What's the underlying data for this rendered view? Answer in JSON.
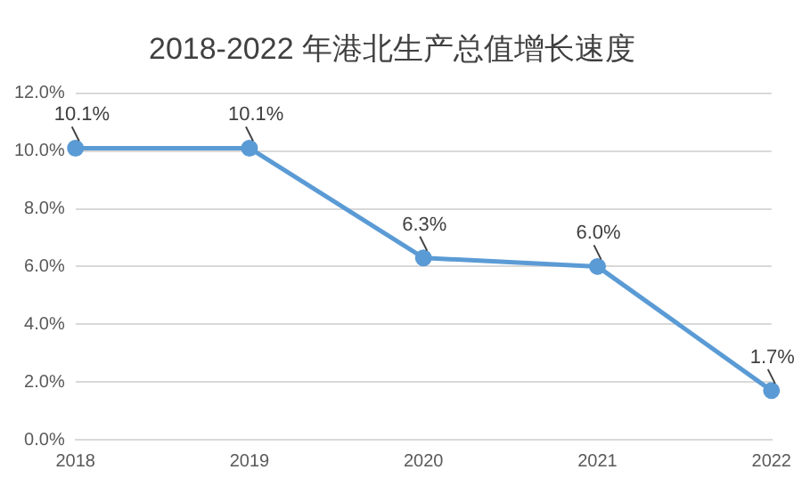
{
  "chart_data": {
    "type": "line",
    "title": "2018-2022 年港北生产总值增长速度",
    "categories": [
      "2018",
      "2019",
      "2020",
      "2021",
      "2022"
    ],
    "series": [
      {
        "color": "#5b9bd5",
        "values": [
          10.1,
          10.1,
          6.3,
          6.0,
          1.7
        ],
        "value_labels": [
          "10.1%",
          "10.1%",
          "6.3%",
          "6.0%",
          "1.7%"
        ]
      }
    ],
    "ylim": [
      0,
      12
    ],
    "yticks": [
      {
        "value": 0,
        "label": "0.0%"
      },
      {
        "value": 2,
        "label": "2.0%"
      },
      {
        "value": 4,
        "label": "4.0%"
      },
      {
        "value": 6,
        "label": "6.0%"
      },
      {
        "value": 8,
        "label": "8.0%"
      },
      {
        "value": 10,
        "label": "10.0%"
      },
      {
        "value": 12,
        "label": "12.0%"
      }
    ],
    "grid": "y",
    "legend": false,
    "marker": "circle",
    "line_style": "solid"
  }
}
